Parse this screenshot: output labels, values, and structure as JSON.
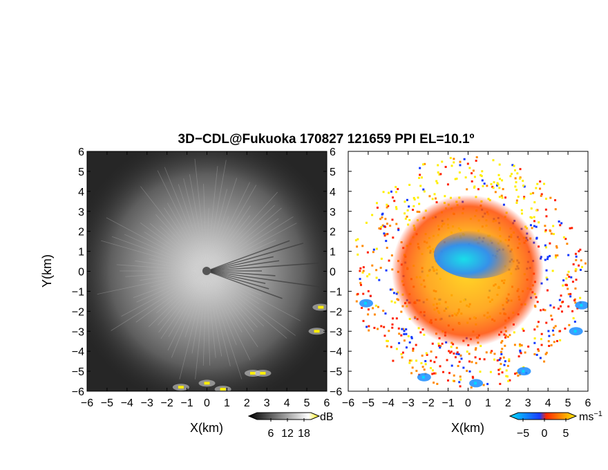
{
  "title": "3D−CDL@Fukuoka 170827 121659 PPI EL=10.1º",
  "chart_data": [
    {
      "type": "heatmap",
      "panel": "left",
      "variable": "reflectivity (grayscale)",
      "xlabel": "X(km)",
      "ylabel": "Y(km)",
      "xlim": [
        -6,
        6
      ],
      "ylim": [
        -6,
        6
      ],
      "xticks": [
        -6,
        -5,
        -4,
        -3,
        -2,
        -1,
        0,
        1,
        2,
        3,
        4,
        5,
        6
      ],
      "yticks": [
        -6,
        -5,
        -4,
        -3,
        -2,
        -1,
        0,
        1,
        2,
        3,
        4,
        5,
        6
      ],
      "xtick_labels": [
        "−6",
        "−5",
        "−4",
        "−3",
        "−2",
        "−1",
        "0",
        "1",
        "2",
        "3",
        "4",
        "5",
        "6"
      ],
      "ytick_labels": [
        "−6",
        "−5",
        "−4",
        "−3",
        "−2",
        "−1",
        "0",
        "1",
        "2",
        "3",
        "4",
        "5",
        "6"
      ],
      "colorbar": {
        "unit": "dB",
        "ticks": [
          6,
          12,
          18
        ],
        "tick_labels": [
          "6",
          "12",
          "18"
        ],
        "colors": [
          "#000000",
          "#ffffff",
          "#ffee00"
        ]
      },
      "highlights": [
        {
          "x": 5.7,
          "y": -1.8
        },
        {
          "x": 5.5,
          "y": -3.0
        },
        {
          "x": 2.3,
          "y": -5.1
        },
        {
          "x": 2.8,
          "y": -5.1
        },
        {
          "x": 0.0,
          "y": -5.6
        },
        {
          "x": 0.8,
          "y": -5.9
        },
        {
          "x": -1.3,
          "y": -5.8
        }
      ]
    },
    {
      "type": "heatmap",
      "panel": "right",
      "variable": "radial velocity",
      "xlabel": "X(km)",
      "xlim": [
        -6,
        6
      ],
      "ylim": [
        -6,
        6
      ],
      "xticks": [
        -6,
        -5,
        -4,
        -3,
        -2,
        -1,
        0,
        1,
        2,
        3,
        4,
        5,
        6
      ],
      "xtick_labels": [
        "−6",
        "−5",
        "−4",
        "−3",
        "−2",
        "−1",
        "0",
        "1",
        "2",
        "3",
        "4",
        "5",
        "6"
      ],
      "ytick_labels": [
        "−6",
        "−5",
        "−4",
        "−3",
        "−2",
        "−1",
        "0",
        "1",
        "2",
        "3",
        "4",
        "5",
        "6"
      ],
      "colorbar": {
        "unit": "ms⁻¹",
        "unit_base": "ms",
        "unit_sup": "−1",
        "ticks": [
          -5,
          0,
          5
        ],
        "tick_labels": [
          "−5",
          "0",
          "5"
        ],
        "colors": [
          "#00ddff",
          "#1a4cff",
          "#ff2a00",
          "#ffee00"
        ]
      }
    }
  ],
  "colors": {
    "gray_dark": "#2a2a2a",
    "gray_light": "#d4d4d4",
    "yellow": "#ffee00",
    "cyan": "#00d8ff",
    "blue": "#1238ff",
    "red": "#ff2200",
    "orange": "#ff8a00"
  }
}
